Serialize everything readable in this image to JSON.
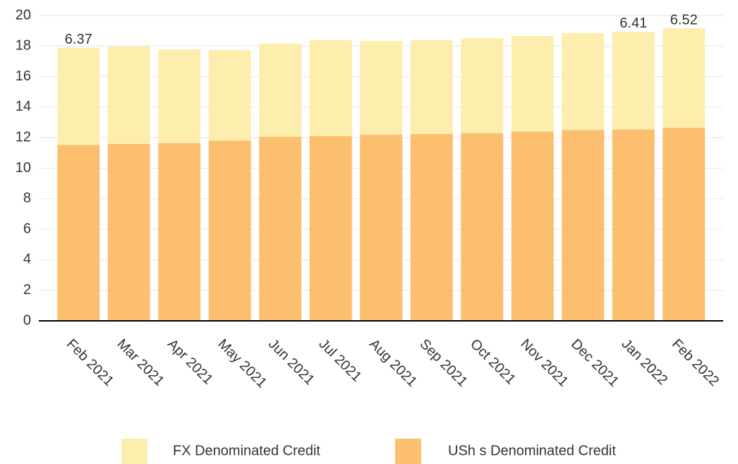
{
  "chart_data": {
    "type": "stacked-bar",
    "categories": [
      "Feb 2021",
      "Mar 2021",
      "Apr 2021",
      "May 2021",
      "Jun 2021",
      "Jul 2021",
      "Aug 2021",
      "Sep 2021",
      "Oct 2021",
      "Nov 2021",
      "Dec 2021",
      "Jan 2022",
      "Feb 2022"
    ],
    "series": [
      {
        "name": "USh s Denominated Credit",
        "color": "#fbbf6f",
        "values": [
          11.52,
          11.59,
          11.65,
          11.8,
          12.06,
          12.1,
          12.2,
          12.25,
          12.3,
          12.4,
          12.5,
          12.53,
          12.65
        ],
        "value_labels": [
          "11.52",
          null,
          null,
          null,
          null,
          null,
          null,
          null,
          null,
          null,
          null,
          "12.53",
          "12.65"
        ]
      },
      {
        "name": "FX Denominated Credit",
        "color": "#fdeeae",
        "values": [
          6.37,
          6.38,
          6.13,
          5.94,
          6.1,
          6.28,
          6.14,
          6.13,
          6.22,
          6.26,
          6.35,
          6.41,
          6.52
        ],
        "value_labels": [
          "6.37",
          null,
          null,
          null,
          null,
          null,
          null,
          null,
          null,
          null,
          null,
          "6.41",
          "6.52"
        ]
      }
    ],
    "ylim": [
      0,
      20
    ],
    "yticks": [
      0,
      2,
      4,
      6,
      8,
      10,
      12,
      14,
      16,
      18,
      20
    ],
    "grid": true,
    "legend": "bottom"
  }
}
